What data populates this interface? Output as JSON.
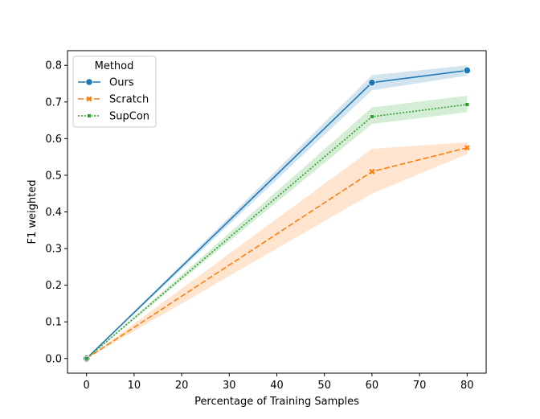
{
  "chart_data": {
    "type": "line",
    "xlabel": "Percentage of Training Samples",
    "ylabel": "F1 weighted",
    "xlim": [
      -4,
      84
    ],
    "ylim": [
      -0.04,
      0.84
    ],
    "xticks": [
      0,
      10,
      20,
      30,
      40,
      50,
      60,
      70,
      80
    ],
    "yticks": [
      0.0,
      0.1,
      0.2,
      0.3,
      0.4,
      0.5,
      0.6,
      0.7,
      0.8
    ],
    "x": [
      0,
      60,
      80
    ],
    "grid": false,
    "legend": {
      "title": "Method",
      "placement": "top-left"
    },
    "series": [
      {
        "name": "Ours",
        "values": [
          0.0,
          0.753,
          0.786
        ],
        "lower": [
          0.0,
          0.732,
          0.772
        ],
        "upper": [
          0.0,
          0.773,
          0.8
        ],
        "color": "#1f77b4",
        "dash": "solid",
        "marker": "circle"
      },
      {
        "name": "Scratch",
        "values": [
          0.0,
          0.51,
          0.575
        ],
        "lower": [
          0.0,
          0.45,
          0.558
        ],
        "upper": [
          0.0,
          0.572,
          0.59
        ],
        "color": "#ff7f0e",
        "dash": "dashed",
        "marker": "x"
      },
      {
        "name": "SupCon",
        "values": [
          0.0,
          0.66,
          0.693
        ],
        "lower": [
          0.0,
          0.64,
          0.672
        ],
        "upper": [
          0.0,
          0.685,
          0.717
        ],
        "color": "#2ca02c",
        "dash": "dotted",
        "marker": "square"
      }
    ]
  }
}
